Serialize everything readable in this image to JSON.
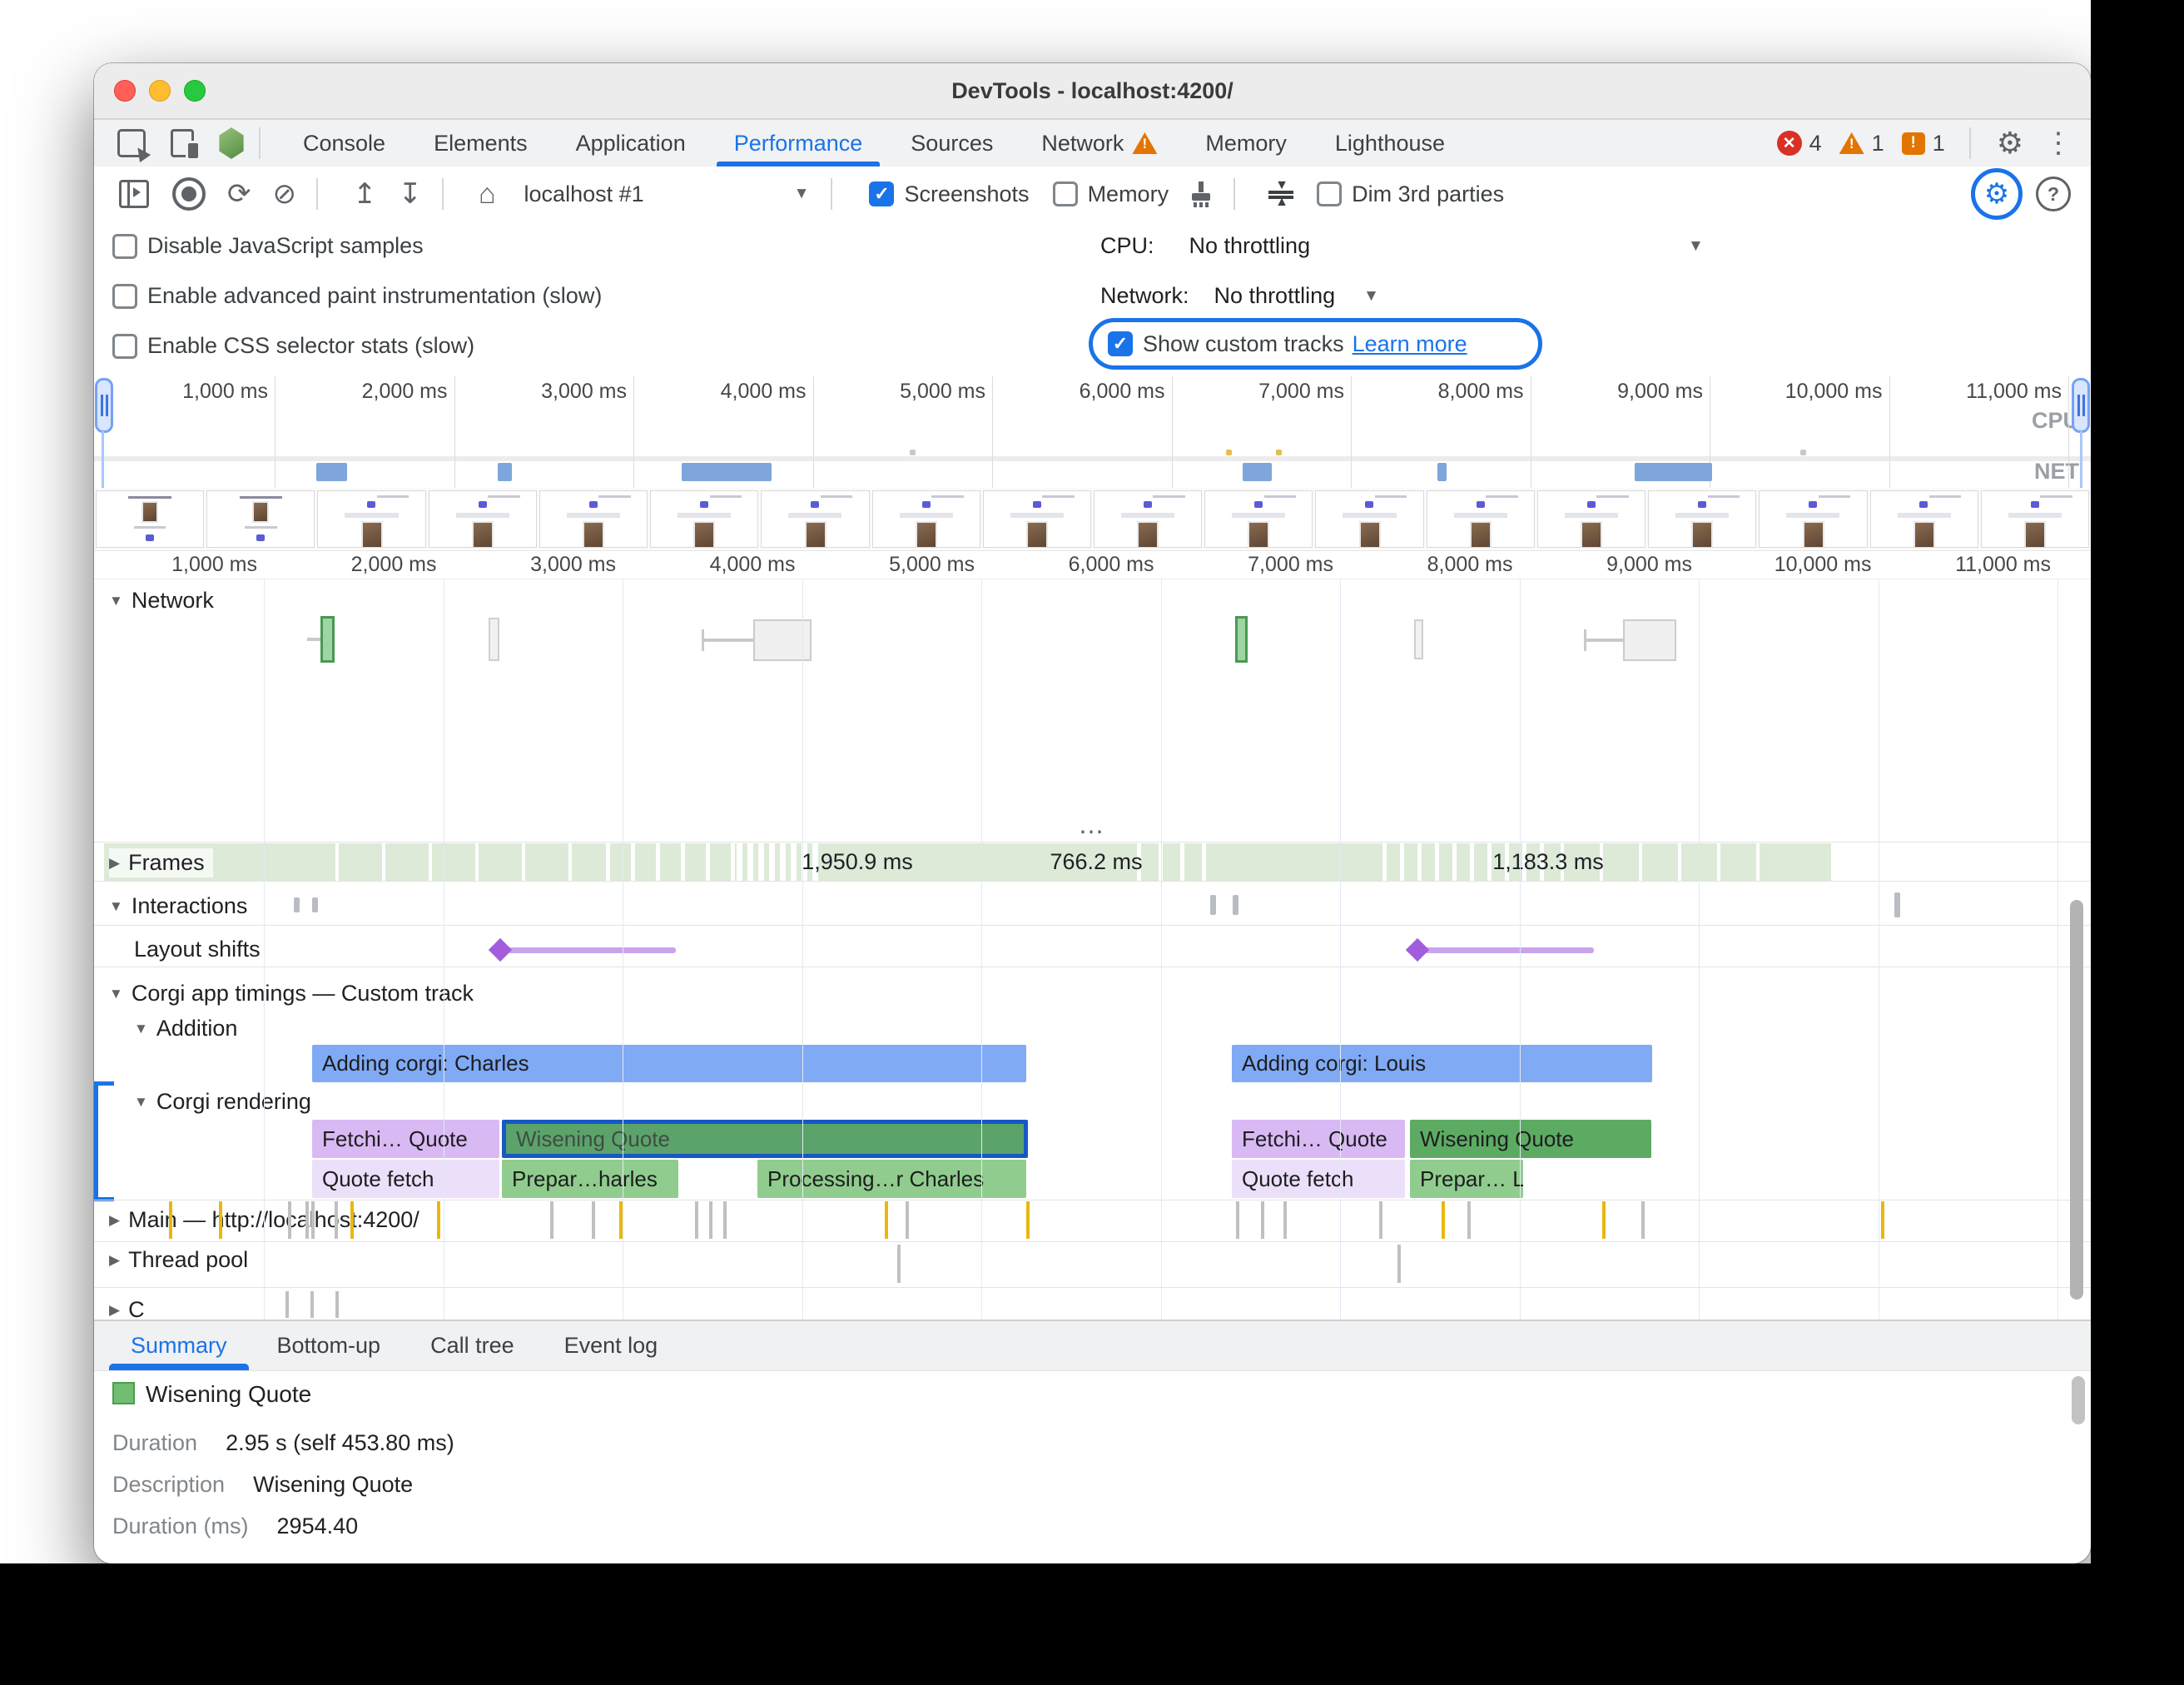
{
  "window": {
    "title": "DevTools - localhost:4200/"
  },
  "colors": {
    "accent": "#1a73e8",
    "error": "#d93025",
    "warning": "#e37400",
    "custom_bar": "#80aaf4",
    "lavender": "#d9b9f3",
    "lavender_light": "#ecdff9",
    "green_selected": "#5ba36a",
    "green": "#5dab63",
    "green_light": "#90cc8e",
    "frames_band": "#dcead7",
    "net_bar": "#7ea6dc",
    "layout_shift": "#a25ddc"
  },
  "main_tabs": {
    "items": [
      "Console",
      "Elements",
      "Application",
      "Performance",
      "Sources",
      "Network",
      "Memory",
      "Lighthouse"
    ],
    "active_index": 3,
    "warning_tab_index": 5,
    "error_count": "4",
    "warning_count": "1",
    "issue_count": "1"
  },
  "perf_toolbar": {
    "target_select": "localhost #1",
    "screenshots_label": "Screenshots",
    "memory_label": "Memory",
    "dim_label": "Dim 3rd parties"
  },
  "capture_settings": {
    "checkboxes": [
      "Disable JavaScript samples",
      "Enable advanced paint instrumentation (slow)",
      "Enable CSS selector stats (slow)"
    ],
    "cpu_label": "CPU:",
    "cpu_value": "No throttling",
    "network_label": "Network:",
    "network_value": "No throttling",
    "custom_tracks_label": "Show custom tracks",
    "learn_more": "Learn more"
  },
  "overview": {
    "ticks": [
      "1,000 ms",
      "2,000 ms",
      "3,000 ms",
      "4,000 ms",
      "5,000 ms",
      "6,000 ms",
      "7,000 ms",
      "8,000 ms",
      "9,000 ms",
      "10,000 ms",
      "11,000 ms"
    ],
    "cpu_label": "CPU",
    "net_label": "NET"
  },
  "timeline": {
    "ticks": [
      "1,000 ms",
      "2,000 ms",
      "3,000 ms",
      "4,000 ms",
      "5,000 ms",
      "6,000 ms",
      "7,000 ms",
      "8,000 ms",
      "9,000 ms",
      "10,000 ms",
      "11,000 ms"
    ],
    "ellipsis": "⋯",
    "network_track": "Network",
    "frames_track": "Frames",
    "frame_durations": [
      "1,950.9 ms",
      "766.2 ms",
      "1,183.3 ms"
    ],
    "interactions_track": "Interactions",
    "layout_shifts_track": "Layout shifts",
    "custom_track": "Corgi app timings — Custom track",
    "addition_group": "Addition",
    "rendering_group": "Corgi rendering",
    "bars": {
      "adding_charles": "Adding corgi: Charles",
      "adding_louis": "Adding corgi: Louis",
      "fetching_quote": "Fetchi… Quote",
      "wisening_quote": "Wisening Quote",
      "quote_fetch": "Quote fetch",
      "preparing_charles": "Prepar…harles",
      "processing_charles": "Processing…r Charles",
      "preparing_louis": "Prepar… Louis"
    },
    "main_track": "Main — http://localhost:4200/",
    "thread_pool_track": "Thread pool",
    "clipped_track": "C"
  },
  "bottom_pane": {
    "tabs": [
      "Summary",
      "Bottom-up",
      "Call tree",
      "Event log"
    ],
    "active_index": 0,
    "summary": {
      "title": "Wisening Quote",
      "rows": [
        {
          "label": "Duration",
          "value": "2.95 s (self 453.80 ms)"
        },
        {
          "label": "Description",
          "value": "Wisening Quote"
        },
        {
          "label": "Duration (ms)",
          "value": "2954.40"
        }
      ]
    }
  }
}
